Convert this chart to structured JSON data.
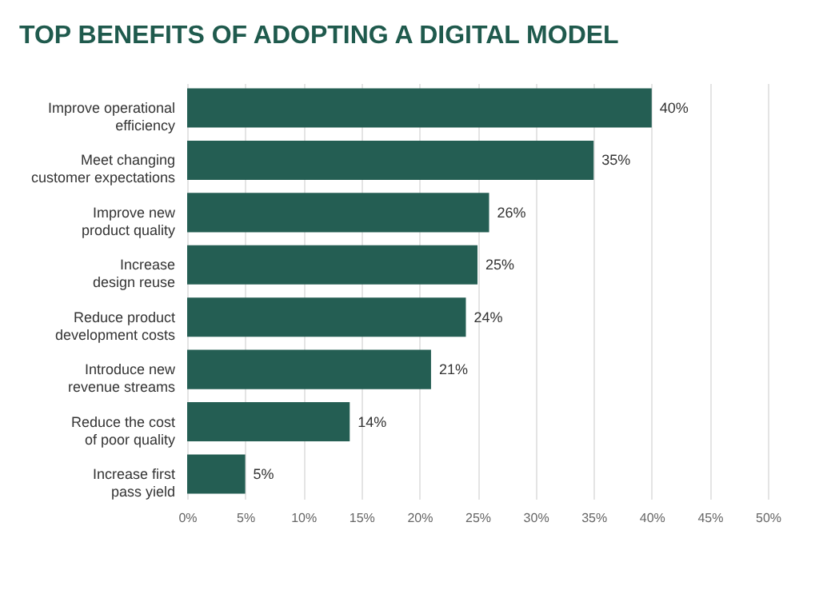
{
  "chart_data": {
    "type": "bar",
    "orientation": "horizontal",
    "title": "TOP BENEFITS OF ADOPTING A DIGITAL MODEL",
    "categories": [
      "Improve operational\nefficiency",
      "Meet changing\ncustomer expectations",
      "Improve new\nproduct quality",
      "Increase\ndesign reuse",
      "Reduce product\ndevelopment costs",
      "Introduce new\nrevenue streams",
      "Reduce the cost\nof poor quality",
      "Increase first\npass yield"
    ],
    "values": [
      40,
      35,
      26,
      25,
      24,
      21,
      14,
      5
    ],
    "value_labels": [
      "40%",
      "35%",
      "26%",
      "25%",
      "24%",
      "21%",
      "14%",
      "5%"
    ],
    "color": "#245e53",
    "xlim": [
      0,
      50
    ],
    "xticks": [
      {
        "value": 0,
        "label": "0%"
      },
      {
        "value": 5,
        "label": "5%"
      },
      {
        "value": 10,
        "label": "10%"
      },
      {
        "value": 15,
        "label": "15%"
      },
      {
        "value": 20,
        "label": "20%"
      },
      {
        "value": 25,
        "label": "25%"
      },
      {
        "value": 30,
        "label": "30%"
      },
      {
        "value": 35,
        "label": "35%"
      },
      {
        "value": 40,
        "label": "40%"
      },
      {
        "value": 45,
        "label": "45%"
      },
      {
        "value": 50,
        "label": "50%"
      }
    ],
    "grid": "x"
  }
}
